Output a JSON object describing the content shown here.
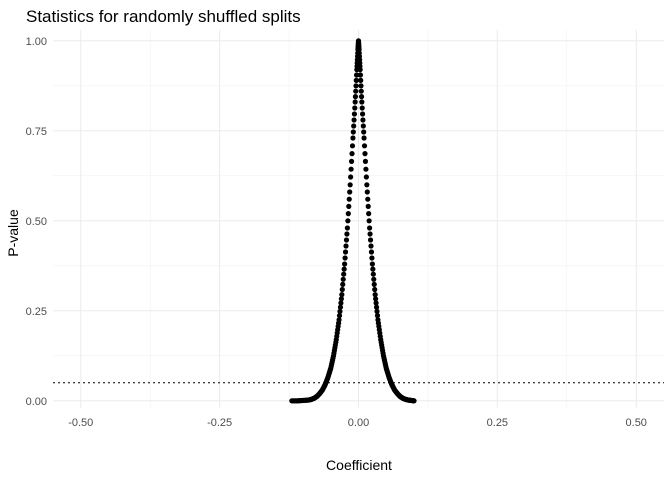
{
  "chart_data": {
    "type": "scatter",
    "title": "Statistics for randomly shuffled splits",
    "xlabel": "Coefficient",
    "ylabel": "P-value",
    "xlim": [
      -0.55,
      0.55
    ],
    "ylim": [
      -0.02,
      1.03
    ],
    "x_ticks": [
      -0.5,
      -0.25,
      0.0,
      0.25,
      0.5
    ],
    "x_tick_labels": [
      "-0.50",
      "-0.25",
      "0.00",
      "0.25",
      "0.50"
    ],
    "y_ticks": [
      0.0,
      0.25,
      0.5,
      0.75,
      1.0
    ],
    "y_tick_labels": [
      "0.00",
      "0.25",
      "0.50",
      "0.75",
      "1.00"
    ],
    "grid": true,
    "reference_line": {
      "orientation": "horizontal",
      "y": 0.05,
      "style": "dotted",
      "color": "#000000"
    },
    "series": [
      {
        "color": "#000000",
        "points": [
          [
            -0.12,
            0.0
          ],
          [
            -0.11,
            0.0
          ],
          [
            -0.1,
            0.001
          ],
          [
            -0.09,
            0.002
          ],
          [
            -0.085,
            0.004
          ],
          [
            -0.08,
            0.007
          ],
          [
            -0.075,
            0.012
          ],
          [
            -0.07,
            0.02
          ],
          [
            -0.065,
            0.03
          ],
          [
            -0.06,
            0.045
          ],
          [
            -0.055,
            0.065
          ],
          [
            -0.05,
            0.09
          ],
          [
            -0.045,
            0.125
          ],
          [
            -0.04,
            0.17
          ],
          [
            -0.035,
            0.225
          ],
          [
            -0.03,
            0.295
          ],
          [
            -0.025,
            0.38
          ],
          [
            -0.02,
            0.48
          ],
          [
            -0.015,
            0.6
          ],
          [
            -0.01,
            0.73
          ],
          [
            -0.006,
            0.83
          ],
          [
            -0.003,
            0.92
          ],
          [
            -0.001,
            0.975
          ],
          [
            0.0,
            1.0
          ],
          [
            0.001,
            0.975
          ],
          [
            0.003,
            0.92
          ],
          [
            0.006,
            0.83
          ],
          [
            0.01,
            0.73
          ],
          [
            0.015,
            0.6
          ],
          [
            0.02,
            0.48
          ],
          [
            0.025,
            0.38
          ],
          [
            0.03,
            0.295
          ],
          [
            0.035,
            0.225
          ],
          [
            0.04,
            0.17
          ],
          [
            0.045,
            0.125
          ],
          [
            0.05,
            0.09
          ],
          [
            0.055,
            0.065
          ],
          [
            0.06,
            0.045
          ],
          [
            0.065,
            0.03
          ],
          [
            0.07,
            0.02
          ],
          [
            0.075,
            0.012
          ],
          [
            0.08,
            0.007
          ],
          [
            0.085,
            0.004
          ],
          [
            0.09,
            0.002
          ],
          [
            0.095,
            0.001
          ],
          [
            0.1,
            0.0
          ]
        ]
      }
    ]
  }
}
